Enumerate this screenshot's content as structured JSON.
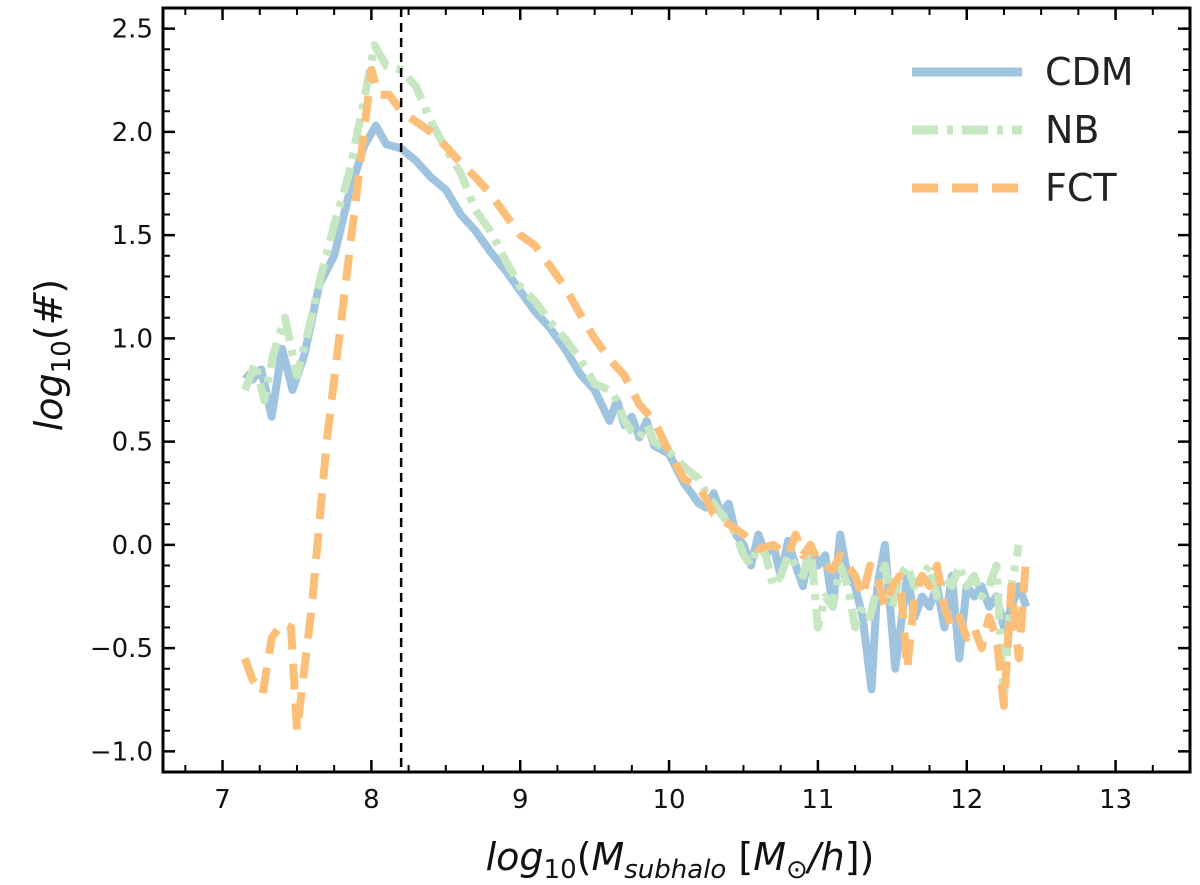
{
  "chart_data": {
    "type": "line",
    "title": "",
    "xlabel": "log10(M_subhalo [M_sun/h])",
    "ylabel": "log10(#)",
    "xlim": [
      6.6,
      13.5
    ],
    "ylim": [
      -1.1,
      2.6
    ],
    "x_ticks": [
      7,
      8,
      9,
      10,
      11,
      12,
      13
    ],
    "x_tick_labels": [
      "7",
      "8",
      "9",
      "10",
      "11",
      "12",
      "13"
    ],
    "y_ticks": [
      -1.0,
      -0.5,
      0.0,
      0.5,
      1.0,
      1.5,
      2.0,
      2.5
    ],
    "y_tick_labels": [
      "−1.0",
      "−0.5",
      "0.0",
      "0.5",
      "1.0",
      "1.5",
      "2.0",
      "2.5"
    ],
    "vline_x": 8.2,
    "legend_position": "top-right",
    "series": [
      {
        "name": "CDM",
        "color": "#9ec4e0",
        "style": "solid",
        "x": [
          7.15,
          7.2,
          7.26,
          7.33,
          7.4,
          7.47,
          7.55,
          7.65,
          7.75,
          7.85,
          7.95,
          8.03,
          8.1,
          8.2,
          8.3,
          8.4,
          8.5,
          8.6,
          8.7,
          8.8,
          8.9,
          9.0,
          9.1,
          9.2,
          9.3,
          9.4,
          9.5,
          9.6,
          9.65,
          9.7,
          9.75,
          9.8,
          9.85,
          9.9,
          10.0,
          10.1,
          10.2,
          10.25,
          10.3,
          10.35,
          10.4,
          10.45,
          10.5,
          10.55,
          10.6,
          10.65,
          10.7,
          10.75,
          10.8,
          10.85,
          10.9,
          10.95,
          11.0,
          11.05,
          11.1,
          11.15,
          11.2,
          11.25,
          11.3,
          11.36,
          11.4,
          11.45,
          11.52,
          11.6,
          11.65,
          11.7,
          11.75,
          11.8,
          11.85,
          11.9,
          11.95,
          12.0,
          12.05,
          12.1,
          12.15,
          12.2,
          12.25,
          12.3,
          12.35,
          12.4
        ],
        "y": [
          0.83,
          0.8,
          0.85,
          0.62,
          0.95,
          0.75,
          0.92,
          1.26,
          1.4,
          1.7,
          1.93,
          2.03,
          1.94,
          1.92,
          1.86,
          1.78,
          1.72,
          1.6,
          1.52,
          1.42,
          1.33,
          1.23,
          1.13,
          1.05,
          0.95,
          0.83,
          0.75,
          0.6,
          0.7,
          0.58,
          0.62,
          0.52,
          0.6,
          0.48,
          0.44,
          0.3,
          0.2,
          0.18,
          0.25,
          0.15,
          0.2,
          0.05,
          0.0,
          -0.1,
          0.05,
          -0.05,
          0.0,
          -0.15,
          0.02,
          -0.1,
          -0.2,
          0.0,
          -0.1,
          -0.05,
          -0.3,
          0.05,
          -0.15,
          -0.2,
          -0.35,
          -0.7,
          -0.2,
          0.0,
          -0.6,
          -0.15,
          -0.35,
          -0.25,
          -0.3,
          -0.2,
          -0.4,
          -0.15,
          -0.55,
          -0.2,
          -0.25,
          -0.2,
          -0.3,
          -0.25,
          -0.4,
          -0.3,
          -0.2,
          -0.3
        ]
      },
      {
        "name": "NB",
        "color": "#c6e7c1",
        "style": "dashdot",
        "x": [
          7.15,
          7.22,
          7.28,
          7.34,
          7.42,
          7.5,
          7.58,
          7.66,
          7.75,
          7.85,
          7.95,
          8.02,
          8.1,
          8.2,
          8.3,
          8.4,
          8.5,
          8.6,
          8.7,
          8.8,
          8.9,
          9.0,
          9.1,
          9.2,
          9.3,
          9.4,
          9.5,
          9.6,
          9.65,
          9.7,
          9.75,
          9.8,
          9.85,
          9.9,
          10.0,
          10.1,
          10.2,
          10.25,
          10.3,
          10.35,
          10.4,
          10.45,
          10.5,
          10.55,
          10.6,
          10.65,
          10.7,
          10.75,
          10.8,
          10.85,
          10.9,
          10.95,
          11.0,
          11.05,
          11.1,
          11.15,
          11.2,
          11.25,
          11.3,
          11.35,
          11.4,
          11.45,
          11.5,
          11.55,
          11.6,
          11.65,
          11.7,
          11.75,
          11.8,
          11.85,
          11.9,
          11.95,
          12.0,
          12.05,
          12.1,
          12.15,
          12.2,
          12.25,
          12.3,
          12.35
        ],
        "y": [
          0.75,
          0.88,
          0.7,
          0.92,
          1.1,
          0.82,
          1.05,
          1.3,
          1.55,
          1.8,
          2.15,
          2.42,
          2.32,
          2.3,
          2.22,
          2.05,
          1.92,
          1.8,
          1.62,
          1.52,
          1.38,
          1.25,
          1.18,
          1.08,
          1.0,
          0.9,
          0.78,
          0.75,
          0.7,
          0.6,
          0.55,
          0.52,
          0.58,
          0.5,
          0.45,
          0.38,
          0.32,
          0.25,
          0.2,
          0.15,
          0.1,
          0.05,
          -0.05,
          -0.1,
          0.0,
          -0.05,
          -0.2,
          -0.15,
          -0.05,
          -0.1,
          -0.15,
          0.0,
          -0.4,
          -0.25,
          -0.3,
          -0.1,
          -0.2,
          -0.4,
          -0.3,
          -0.35,
          -0.2,
          -0.1,
          -0.3,
          -0.15,
          -0.1,
          -0.2,
          -0.15,
          -0.1,
          -0.25,
          -0.15,
          -0.2,
          -0.1,
          -0.2,
          -0.15,
          -0.25,
          -0.2,
          -0.1,
          -0.75,
          -0.2,
          0.0
        ]
      },
      {
        "name": "FCT",
        "color": "#fbbf7a",
        "style": "dashed",
        "x": [
          7.15,
          7.2,
          7.27,
          7.33,
          7.4,
          7.46,
          7.5,
          7.6,
          7.7,
          7.8,
          7.9,
          8.0,
          8.05,
          8.12,
          8.2,
          8.3,
          8.4,
          8.5,
          8.6,
          8.7,
          8.8,
          8.9,
          9.0,
          9.1,
          9.2,
          9.3,
          9.4,
          9.5,
          9.6,
          9.7,
          9.8,
          9.9,
          10.0,
          10.1,
          10.2,
          10.25,
          10.3,
          10.4,
          10.5,
          10.6,
          10.7,
          10.8,
          10.85,
          10.9,
          10.95,
          11.0,
          11.05,
          11.1,
          11.15,
          11.2,
          11.25,
          11.3,
          11.35,
          11.4,
          11.45,
          11.5,
          11.55,
          11.6,
          11.65,
          11.7,
          11.75,
          11.8,
          11.85,
          11.9,
          11.95,
          12.0,
          12.05,
          12.1,
          12.15,
          12.2,
          12.25,
          12.3,
          12.35,
          12.4
        ],
        "y": [
          -0.55,
          -0.65,
          -0.72,
          -0.45,
          -0.38,
          -0.4,
          -0.9,
          -0.3,
          0.5,
          1.1,
          1.7,
          2.3,
          2.18,
          2.18,
          2.1,
          2.05,
          2.0,
          1.93,
          1.85,
          1.78,
          1.7,
          1.6,
          1.5,
          1.45,
          1.35,
          1.25,
          1.12,
          1.0,
          0.9,
          0.82,
          0.68,
          0.6,
          0.45,
          0.32,
          0.28,
          0.22,
          0.15,
          0.1,
          0.05,
          -0.02,
          0.0,
          -0.05,
          0.05,
          -0.05,
          0.0,
          -0.08,
          -0.1,
          -0.12,
          -0.05,
          -0.1,
          -0.15,
          -0.25,
          -0.1,
          -0.15,
          -0.3,
          -0.2,
          -0.15,
          -0.6,
          -0.25,
          -0.15,
          -0.2,
          -0.1,
          -0.3,
          -0.4,
          -0.35,
          -0.45,
          -0.4,
          -0.5,
          -0.35,
          -0.45,
          -0.78,
          -0.2,
          -0.55,
          -0.05
        ]
      }
    ]
  }
}
